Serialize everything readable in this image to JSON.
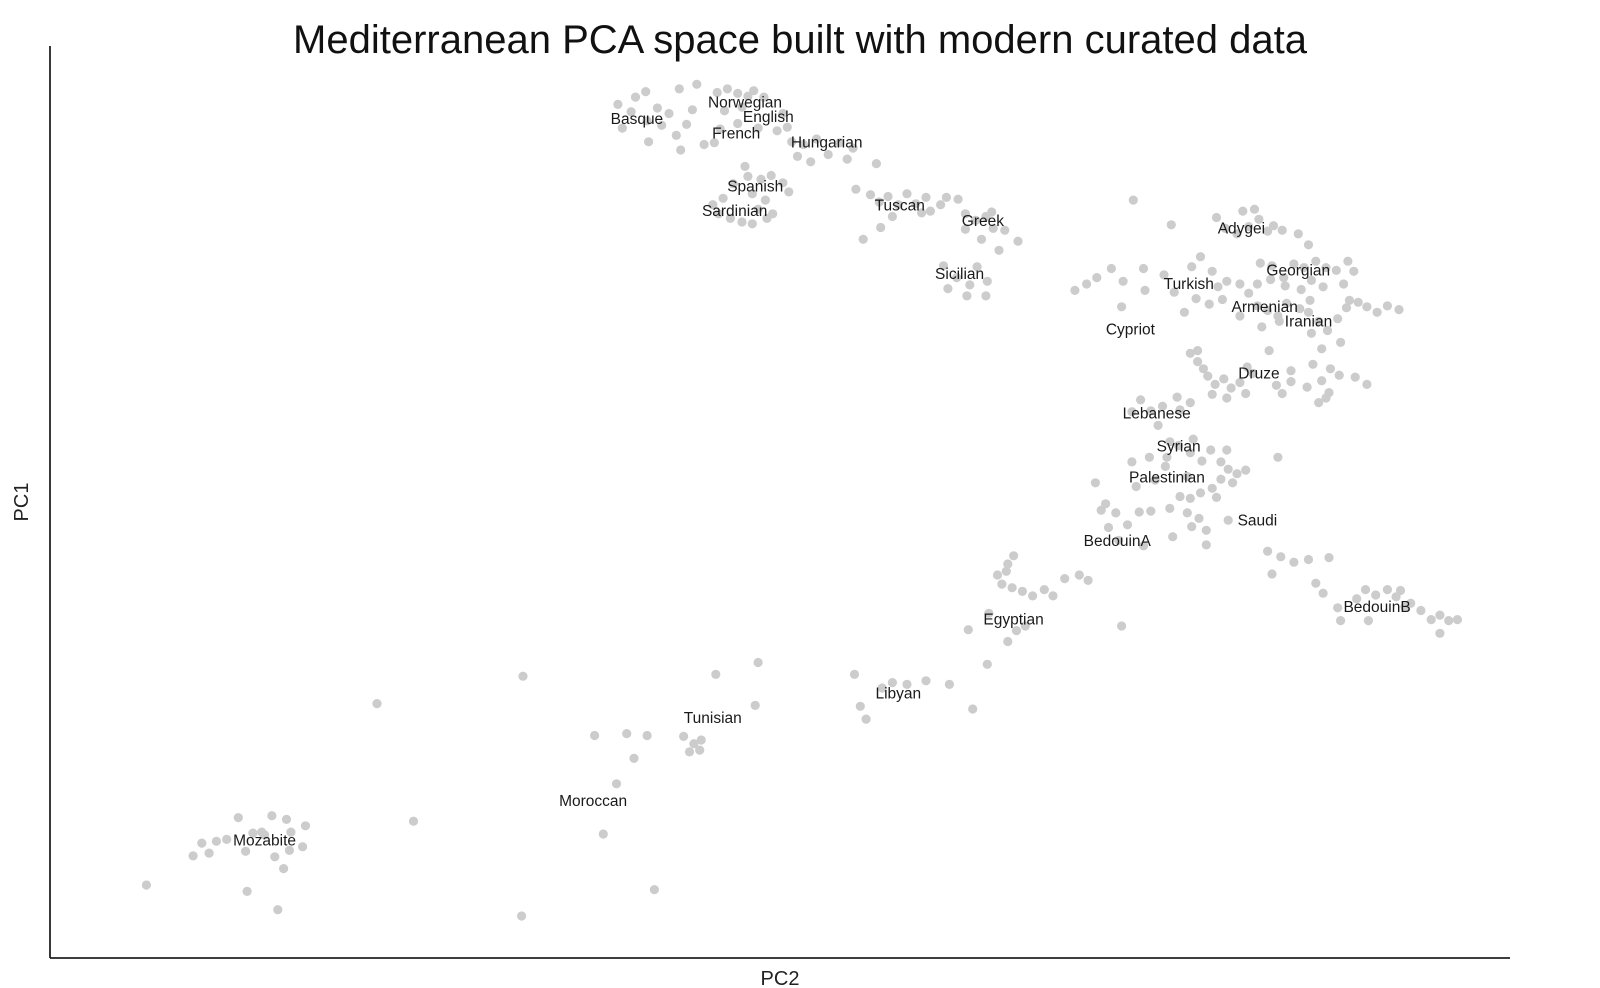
{
  "chart_data": {
    "type": "scatter",
    "title": "Mediterranean PCA space built with modern curated data",
    "xlabel": "PC2",
    "ylabel": "PC1",
    "xlim": [
      0,
      100
    ],
    "ylim": [
      0,
      100
    ],
    "show_ticks": false,
    "grid": false,
    "point_color": "#cccccc",
    "axis_color": "#222222",
    "labels": [
      {
        "text": "Basque",
        "x": 40.2,
        "y": 91.9
      },
      {
        "text": "Norwegian",
        "x": 47.6,
        "y": 93.7
      },
      {
        "text": "English",
        "x": 49.2,
        "y": 92.1
      },
      {
        "text": "French",
        "x": 47.0,
        "y": 90.3
      },
      {
        "text": "Hungarian",
        "x": 53.2,
        "y": 89.3
      },
      {
        "text": "Spanish",
        "x": 48.3,
        "y": 84.5
      },
      {
        "text": "Sardinian",
        "x": 46.9,
        "y": 81.8
      },
      {
        "text": "Tuscan",
        "x": 58.2,
        "y": 82.4
      },
      {
        "text": "Greek",
        "x": 63.9,
        "y": 80.7
      },
      {
        "text": "Sicilian",
        "x": 62.3,
        "y": 74.9
      },
      {
        "text": "Adygei",
        "x": 81.6,
        "y": 79.9
      },
      {
        "text": "Georgian",
        "x": 85.5,
        "y": 75.3
      },
      {
        "text": "Turkish",
        "x": 78.0,
        "y": 73.8
      },
      {
        "text": "Armenian",
        "x": 83.2,
        "y": 71.3
      },
      {
        "text": "Iranian",
        "x": 86.2,
        "y": 69.7
      },
      {
        "text": "Cypriot",
        "x": 74.0,
        "y": 68.8
      },
      {
        "text": "Druze",
        "x": 82.8,
        "y": 64.0
      },
      {
        "text": "Lebanese",
        "x": 75.8,
        "y": 59.6
      },
      {
        "text": "Syrian",
        "x": 77.3,
        "y": 56.0
      },
      {
        "text": "Palestinian",
        "x": 76.5,
        "y": 52.6
      },
      {
        "text": "Saudi",
        "x": 82.7,
        "y": 47.9
      },
      {
        "text": "BedouinA",
        "x": 73.1,
        "y": 45.6
      },
      {
        "text": "BedouinB",
        "x": 90.9,
        "y": 38.4
      },
      {
        "text": "Egyptian",
        "x": 66.0,
        "y": 37.0
      },
      {
        "text": "Libyan",
        "x": 58.1,
        "y": 28.9
      },
      {
        "text": "Tunisian",
        "x": 45.4,
        "y": 26.2
      },
      {
        "text": "Moroccan",
        "x": 37.2,
        "y": 17.1
      },
      {
        "text": "Mozabite",
        "x": 14.7,
        "y": 12.8
      }
    ],
    "points": [
      [
        40.1,
        94.4
      ],
      [
        38.9,
        93.6
      ],
      [
        39.8,
        92.8
      ],
      [
        40.9,
        91.8
      ],
      [
        41.6,
        93.2
      ],
      [
        41.9,
        91.3
      ],
      [
        42.4,
        92.6
      ],
      [
        40.8,
        95.0
      ],
      [
        42.9,
        90.2
      ],
      [
        43.6,
        91.4
      ],
      [
        41.0,
        89.5
      ],
      [
        39.2,
        91.0
      ],
      [
        43.2,
        88.6
      ],
      [
        44.0,
        93.0
      ],
      [
        44.3,
        95.8
      ],
      [
        43.1,
        95.3
      ],
      [
        45.7,
        94.9
      ],
      [
        46.4,
        95.3
      ],
      [
        47.1,
        94.8
      ],
      [
        47.8,
        94.5
      ],
      [
        48.2,
        95.1
      ],
      [
        48.9,
        94.4
      ],
      [
        46.2,
        92.9
      ],
      [
        45.9,
        90.9
      ],
      [
        44.8,
        89.2
      ],
      [
        45.5,
        89.4
      ],
      [
        47.1,
        91.5
      ],
      [
        48.5,
        91.0
      ],
      [
        49.8,
        90.7
      ],
      [
        50.5,
        91.1
      ],
      [
        50.2,
        92.6
      ],
      [
        47.4,
        93.3
      ],
      [
        50.8,
        89.5
      ],
      [
        51.6,
        89.2
      ],
      [
        52.5,
        89.8
      ],
      [
        53.3,
        88.1
      ],
      [
        52.1,
        87.3
      ],
      [
        55.0,
        88.8
      ],
      [
        54.1,
        89.4
      ],
      [
        56.6,
        87.1
      ],
      [
        54.6,
        87.6
      ],
      [
        51.2,
        87.9
      ],
      [
        46.8,
        84.9
      ],
      [
        47.8,
        85.7
      ],
      [
        48.7,
        85.4
      ],
      [
        49.4,
        85.8
      ],
      [
        50.2,
        85.0
      ],
      [
        50.6,
        84.0
      ],
      [
        49.0,
        83.1
      ],
      [
        47.6,
        86.8
      ],
      [
        48.1,
        83.8
      ],
      [
        46.1,
        83.3
      ],
      [
        45.8,
        81.6
      ],
      [
        46.6,
        81.1
      ],
      [
        47.4,
        80.7
      ],
      [
        48.1,
        80.5
      ],
      [
        49.1,
        81.1
      ],
      [
        48.5,
        82.1
      ],
      [
        45.4,
        82.6
      ],
      [
        49.5,
        81.6
      ],
      [
        55.2,
        84.3
      ],
      [
        56.2,
        83.7
      ],
      [
        56.8,
        82.9
      ],
      [
        57.4,
        83.5
      ],
      [
        58.1,
        82.6
      ],
      [
        58.7,
        83.8
      ],
      [
        59.3,
        82.7
      ],
      [
        60.0,
        83.4
      ],
      [
        57.7,
        81.3
      ],
      [
        59.7,
        81.7
      ],
      [
        60.3,
        81.9
      ],
      [
        61.0,
        82.6
      ],
      [
        61.4,
        83.4
      ],
      [
        56.9,
        80.1
      ],
      [
        55.7,
        78.8
      ],
      [
        62.2,
        83.2
      ],
      [
        62.7,
        81.6
      ],
      [
        63.4,
        80.9
      ],
      [
        64.1,
        81.3
      ],
      [
        64.6,
        80.0
      ],
      [
        65.4,
        79.8
      ],
      [
        64.5,
        81.8
      ],
      [
        62.7,
        79.9
      ],
      [
        63.8,
        78.8
      ],
      [
        66.3,
        78.6
      ],
      [
        65.0,
        77.6
      ],
      [
        61.2,
        75.9
      ],
      [
        62.1,
        74.6
      ],
      [
        63.0,
        73.8
      ],
      [
        63.5,
        75.8
      ],
      [
        61.5,
        73.4
      ],
      [
        62.8,
        72.6
      ],
      [
        64.1,
        72.6
      ],
      [
        64.2,
        74.2
      ],
      [
        70.2,
        73.2
      ],
      [
        71.0,
        73.9
      ],
      [
        71.7,
        74.6
      ],
      [
        72.7,
        75.6
      ],
      [
        73.5,
        74.2
      ],
      [
        74.9,
        75.6
      ],
      [
        76.3,
        74.9
      ],
      [
        75.0,
        73.2
      ],
      [
        77.0,
        73.0
      ],
      [
        78.2,
        75.8
      ],
      [
        78.8,
        76.9
      ],
      [
        79.6,
        75.3
      ],
      [
        80.0,
        73.6
      ],
      [
        78.5,
        72.3
      ],
      [
        79.4,
        71.7
      ],
      [
        80.3,
        72.2
      ],
      [
        80.6,
        74.2
      ],
      [
        81.5,
        73.9
      ],
      [
        77.7,
        70.8
      ],
      [
        73.4,
        71.4
      ],
      [
        76.8,
        80.4
      ],
      [
        74.2,
        83.1
      ],
      [
        79.9,
        81.2
      ],
      [
        80.5,
        80.0
      ],
      [
        81.3,
        79.4
      ],
      [
        82.1,
        80.2
      ],
      [
        82.8,
        81.0
      ],
      [
        83.4,
        79.7
      ],
      [
        83.8,
        80.3
      ],
      [
        81.7,
        81.9
      ],
      [
        82.5,
        82.1
      ],
      [
        84.4,
        79.8
      ],
      [
        85.5,
        79.4
      ],
      [
        86.2,
        78.2
      ],
      [
        82.9,
        76.2
      ],
      [
        83.7,
        75.9
      ],
      [
        84.5,
        74.6
      ],
      [
        85.2,
        76.1
      ],
      [
        85.9,
        75.7
      ],
      [
        86.7,
        76.4
      ],
      [
        87.4,
        75.7
      ],
      [
        88.1,
        75.4
      ],
      [
        88.9,
        76.4
      ],
      [
        89.3,
        75.3
      ],
      [
        86.4,
        74.3
      ],
      [
        85.7,
        73.3
      ],
      [
        84.6,
        73.7
      ],
      [
        83.6,
        74.4
      ],
      [
        82.7,
        73.9
      ],
      [
        87.2,
        73.6
      ],
      [
        88.6,
        73.9
      ],
      [
        82.1,
        72.9
      ],
      [
        82.7,
        71.5
      ],
      [
        83.4,
        71.0
      ],
      [
        84.1,
        70.4
      ],
      [
        84.7,
        71.8
      ],
      [
        85.6,
        71.2
      ],
      [
        86.3,
        72.1
      ],
      [
        84.2,
        69.8
      ],
      [
        83.0,
        69.2
      ],
      [
        81.5,
        70.4
      ],
      [
        86.2,
        70.8
      ],
      [
        86.9,
        69.8
      ],
      [
        87.5,
        68.8
      ],
      [
        88.2,
        70.1
      ],
      [
        88.8,
        71.3
      ],
      [
        89.6,
        71.9
      ],
      [
        90.2,
        71.4
      ],
      [
        90.9,
        70.8
      ],
      [
        91.6,
        71.5
      ],
      [
        92.4,
        71.1
      ],
      [
        89.0,
        72.1
      ],
      [
        86.4,
        68.5
      ],
      [
        88.4,
        67.5
      ],
      [
        87.1,
        66.8
      ],
      [
        78.1,
        66.3
      ],
      [
        78.6,
        65.4
      ],
      [
        79.0,
        64.6
      ],
      [
        79.3,
        63.8
      ],
      [
        79.8,
        62.9
      ],
      [
        80.4,
        63.5
      ],
      [
        80.9,
        62.5
      ],
      [
        81.5,
        63.1
      ],
      [
        82.4,
        64.1
      ],
      [
        82.0,
        64.8
      ],
      [
        84.0,
        62.8
      ],
      [
        85.0,
        63.2
      ],
      [
        86.1,
        62.6
      ],
      [
        87.1,
        63.3
      ],
      [
        87.6,
        62.0
      ],
      [
        88.3,
        63.9
      ],
      [
        89.4,
        63.7
      ],
      [
        90.2,
        62.9
      ],
      [
        86.9,
        60.9
      ],
      [
        87.4,
        61.4
      ],
      [
        84.4,
        61.9
      ],
      [
        85.0,
        64.4
      ],
      [
        86.5,
        65.1
      ],
      [
        87.7,
        64.6
      ],
      [
        83.5,
        66.6
      ],
      [
        81.9,
        61.9
      ],
      [
        78.6,
        66.6
      ],
      [
        79.6,
        61.8
      ],
      [
        80.6,
        61.4
      ],
      [
        74.7,
        61.2
      ],
      [
        75.4,
        60.0
      ],
      [
        76.2,
        60.5
      ],
      [
        77.2,
        61.5
      ],
      [
        78.1,
        60.9
      ],
      [
        75.9,
        58.4
      ],
      [
        74.1,
        59.9
      ],
      [
        77.4,
        60.1
      ],
      [
        76.5,
        54.9
      ],
      [
        77.3,
        56.2
      ],
      [
        78.1,
        55.4
      ],
      [
        78.9,
        54.5
      ],
      [
        79.5,
        55.7
      ],
      [
        80.2,
        54.4
      ],
      [
        80.7,
        53.6
      ],
      [
        81.3,
        53.1
      ],
      [
        81.9,
        53.5
      ],
      [
        81.0,
        52.1
      ],
      [
        80.2,
        52.5
      ],
      [
        79.6,
        51.5
      ],
      [
        78.8,
        51.0
      ],
      [
        78.1,
        50.4
      ],
      [
        77.4,
        50.6
      ],
      [
        77.9,
        52.8
      ],
      [
        76.4,
        53.9
      ],
      [
        75.3,
        54.9
      ],
      [
        74.1,
        54.4
      ],
      [
        75.7,
        52.4
      ],
      [
        74.4,
        51.7
      ],
      [
        71.6,
        52.1
      ],
      [
        79.9,
        50.5
      ],
      [
        78.3,
        56.9
      ],
      [
        76.7,
        56.6
      ],
      [
        72.0,
        49.1
      ],
      [
        72.3,
        49.8
      ],
      [
        73.0,
        48.8
      ],
      [
        73.8,
        47.5
      ],
      [
        74.6,
        48.9
      ],
      [
        75.4,
        49.0
      ],
      [
        76.7,
        49.3
      ],
      [
        77.9,
        48.8
      ],
      [
        78.7,
        48.2
      ],
      [
        79.2,
        46.9
      ],
      [
        80.7,
        48.0
      ],
      [
        73.2,
        45.8
      ],
      [
        74.9,
        45.2
      ],
      [
        76.9,
        46.2
      ],
      [
        72.5,
        47.2
      ],
      [
        79.2,
        45.3
      ],
      [
        78.2,
        47.3
      ],
      [
        84.1,
        54.9
      ],
      [
        80.6,
        55.7
      ],
      [
        83.4,
        44.6
      ],
      [
        84.3,
        44.0
      ],
      [
        85.2,
        43.4
      ],
      [
        86.2,
        43.7
      ],
      [
        83.7,
        42.1
      ],
      [
        87.6,
        43.9
      ],
      [
        86.7,
        41.1
      ],
      [
        87.2,
        40.0
      ],
      [
        88.2,
        38.4
      ],
      [
        88.4,
        37.0
      ],
      [
        89.5,
        39.4
      ],
      [
        90.1,
        40.4
      ],
      [
        90.8,
        39.8
      ],
      [
        91.6,
        40.4
      ],
      [
        92.2,
        39.6
      ],
      [
        92.5,
        40.3
      ],
      [
        92.8,
        38.5
      ],
      [
        93.2,
        38.9
      ],
      [
        93.9,
        38.1
      ],
      [
        94.6,
        37.1
      ],
      [
        95.2,
        37.6
      ],
      [
        95.8,
        37.0
      ],
      [
        96.4,
        37.1
      ],
      [
        95.2,
        35.6
      ],
      [
        90.3,
        37.0
      ],
      [
        65.5,
        42.4
      ],
      [
        65.2,
        41.0
      ],
      [
        65.9,
        40.6
      ],
      [
        66.6,
        40.2
      ],
      [
        67.3,
        39.7
      ],
      [
        68.1,
        40.4
      ],
      [
        68.7,
        39.7
      ],
      [
        69.5,
        41.6
      ],
      [
        70.5,
        42.0
      ],
      [
        71.1,
        41.4
      ],
      [
        66.0,
        44.1
      ],
      [
        65.6,
        43.2
      ],
      [
        66.8,
        36.4
      ],
      [
        66.2,
        35.9
      ],
      [
        65.6,
        34.7
      ],
      [
        64.2,
        32.2
      ],
      [
        62.9,
        36.0
      ],
      [
        64.3,
        37.8
      ],
      [
        73.4,
        36.4
      ],
      [
        64.9,
        42.0
      ],
      [
        57.0,
        29.6
      ],
      [
        57.7,
        30.2
      ],
      [
        58.7,
        30.0
      ],
      [
        60.0,
        30.4
      ],
      [
        61.6,
        30.0
      ],
      [
        63.2,
        27.3
      ],
      [
        55.1,
        31.1
      ],
      [
        55.5,
        27.6
      ],
      [
        55.9,
        26.2
      ],
      [
        48.5,
        32.4
      ],
      [
        45.6,
        31.1
      ],
      [
        48.3,
        27.7
      ],
      [
        43.4,
        24.3
      ],
      [
        44.1,
        23.5
      ],
      [
        43.8,
        22.6
      ],
      [
        44.5,
        22.8
      ],
      [
        44.6,
        23.9
      ],
      [
        39.5,
        24.6
      ],
      [
        40.0,
        21.9
      ],
      [
        40.9,
        24.4
      ],
      [
        38.8,
        19.1
      ],
      [
        37.3,
        24.4
      ],
      [
        37.9,
        13.6
      ],
      [
        41.4,
        7.5
      ],
      [
        32.4,
        30.9
      ],
      [
        32.3,
        4.6
      ],
      [
        22.4,
        27.9
      ],
      [
        24.9,
        15.0
      ],
      [
        12.9,
        15.4
      ],
      [
        13.9,
        13.7
      ],
      [
        14.7,
        13.5
      ],
      [
        16.2,
        15.2
      ],
      [
        15.2,
        15.6
      ],
      [
        16.5,
        13.8
      ],
      [
        17.5,
        14.5
      ],
      [
        17.3,
        12.2
      ],
      [
        16.4,
        11.8
      ],
      [
        11.4,
        12.8
      ],
      [
        12.1,
        13.0
      ],
      [
        9.8,
        11.2
      ],
      [
        10.4,
        12.6
      ],
      [
        10.9,
        11.5
      ],
      [
        13.4,
        11.7
      ],
      [
        15.4,
        11.1
      ],
      [
        16.0,
        9.8
      ],
      [
        13.5,
        7.3
      ],
      [
        15.6,
        5.3
      ],
      [
        14.5,
        13.8
      ],
      [
        6.6,
        8.0
      ]
    ]
  }
}
